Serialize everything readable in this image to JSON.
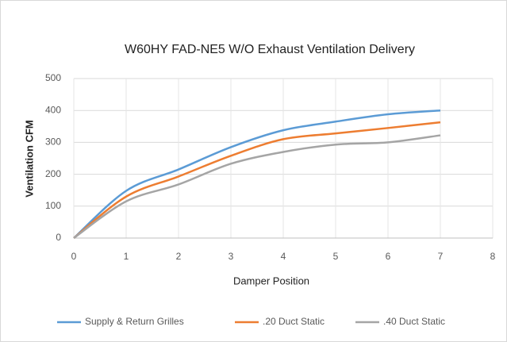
{
  "chart_data": {
    "type": "line",
    "title": "W60HY FAD-NE5 W/O Exhaust Ventilation Delivery",
    "x_label": "Damper Position",
    "y_label": "Ventilation CFM",
    "x": [
      0,
      1,
      2,
      3,
      4,
      5,
      6,
      7
    ],
    "series": [
      {
        "name": "Supply & Return Grilles",
        "color": "#5b9bd5",
        "values": [
          0,
          148,
          215,
          285,
          338,
          365,
          388,
          400
        ]
      },
      {
        "name": ".20 Duct Static",
        "color": "#ed7d31",
        "values": [
          0,
          130,
          193,
          258,
          310,
          328,
          345,
          363
        ]
      },
      {
        "name": ".40 Duct Static",
        "color": "#a5a5a5",
        "values": [
          0,
          115,
          168,
          233,
          270,
          293,
          300,
          322
        ]
      }
    ],
    "xlim": [
      0,
      8
    ],
    "xticks": [
      0,
      1,
      2,
      3,
      4,
      5,
      6,
      7,
      8
    ],
    "ylim": [
      0,
      500
    ],
    "yticks": [
      0,
      100,
      200,
      300,
      400,
      500
    ],
    "grid": true,
    "legend": "bottom"
  }
}
